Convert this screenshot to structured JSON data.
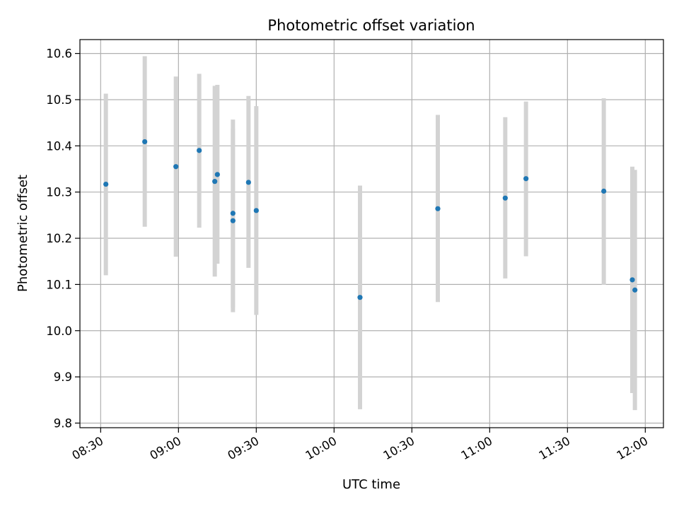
{
  "chart_data": {
    "type": "scatter",
    "title": "Photometric offset variation",
    "xlabel": "UTC time",
    "ylabel": "Photometric offset",
    "x_axis_type": "time",
    "xlim": [
      "08:22",
      "12:07"
    ],
    "ylim": [
      9.79,
      10.63
    ],
    "x_ticks": [
      "08:30",
      "09:00",
      "09:30",
      "10:00",
      "10:30",
      "11:00",
      "11:30",
      "12:00"
    ],
    "y_ticks": [
      "9.8",
      "9.9",
      "10.0",
      "10.1",
      "10.2",
      "10.3",
      "10.4",
      "10.5",
      "10.6"
    ],
    "grid": true,
    "legend": "none",
    "marker_color": "#1f77b4",
    "errorbar_color": "#d3d3d3",
    "points": [
      {
        "x": "08:32",
        "y": 10.317,
        "low": 10.12,
        "high": 10.513
      },
      {
        "x": "08:47",
        "y": 10.409,
        "low": 10.225,
        "high": 10.594
      },
      {
        "x": "08:59",
        "y": 10.355,
        "low": 10.16,
        "high": 10.55
      },
      {
        "x": "09:08",
        "y": 10.39,
        "low": 10.223,
        "high": 10.556
      },
      {
        "x": "09:14",
        "y": 10.323,
        "low": 10.117,
        "high": 10.53
      },
      {
        "x": "09:15",
        "y": 10.338,
        "low": 10.145,
        "high": 10.532
      },
      {
        "x": "09:21",
        "y": 10.238,
        "low": 10.04,
        "high": 10.437
      },
      {
        "x": "09:21",
        "y": 10.254,
        "low": 10.05,
        "high": 10.457
      },
      {
        "x": "09:27",
        "y": 10.321,
        "low": 10.136,
        "high": 10.508
      },
      {
        "x": "09:30",
        "y": 10.26,
        "low": 10.034,
        "high": 10.486
      },
      {
        "x": "10:10",
        "y": 10.072,
        "low": 9.83,
        "high": 10.314
      },
      {
        "x": "10:40",
        "y": 10.264,
        "low": 10.062,
        "high": 10.467
      },
      {
        "x": "11:06",
        "y": 10.287,
        "low": 10.113,
        "high": 10.462
      },
      {
        "x": "11:14",
        "y": 10.329,
        "low": 10.161,
        "high": 10.496
      },
      {
        "x": "11:44",
        "y": 10.302,
        "low": 10.099,
        "high": 10.503
      },
      {
        "x": "11:55",
        "y": 10.11,
        "low": 9.865,
        "high": 10.355
      },
      {
        "x": "11:56",
        "y": 10.088,
        "low": 9.828,
        "high": 10.348
      }
    ]
  }
}
